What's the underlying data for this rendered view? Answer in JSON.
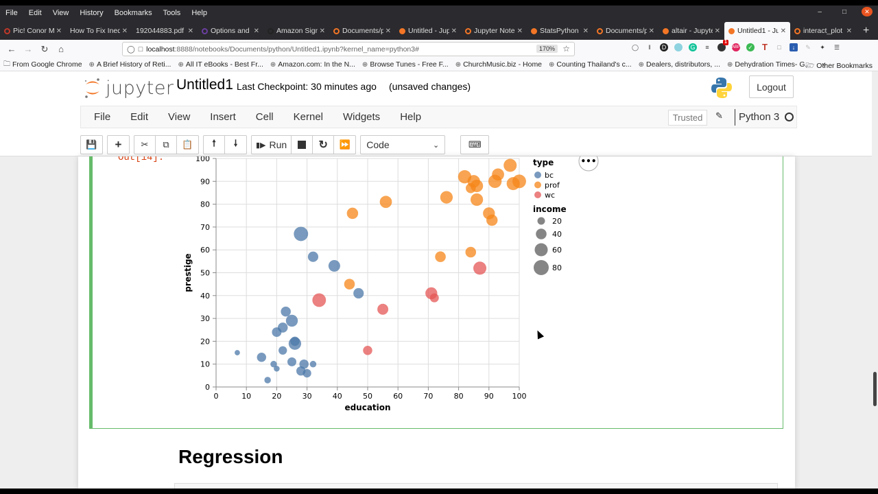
{
  "os_menu": [
    "File",
    "Edit",
    "View",
    "History",
    "Bookmarks",
    "Tools",
    "Help"
  ],
  "browser": {
    "tabs": [
      {
        "label": "Pic! Conor Mc",
        "icon": "#c0392b"
      },
      {
        "label": "How To Fix Ineq",
        "icon": null
      },
      {
        "label": "192044883.pdf",
        "icon": null
      },
      {
        "label": "Options and s",
        "icon": "#6a3fa0"
      },
      {
        "label": "Amazon Sign",
        "icon": "#222"
      },
      {
        "label": "Documents/p",
        "icon": "#f37626"
      },
      {
        "label": "Untitled - Jup",
        "icon": "#f37626"
      },
      {
        "label": "Jupyter Note",
        "icon": "#f37626"
      },
      {
        "label": "StatsPython",
        "icon": "#f37626"
      },
      {
        "label": "Documents/p",
        "icon": "#f37626"
      },
      {
        "label": "altair - Jupyte",
        "icon": "#f37626"
      },
      {
        "label": "Untitled1 - Ju",
        "icon": "#f37626",
        "active": true
      },
      {
        "label": "interact_plot",
        "icon": "#f37626"
      }
    ],
    "new_tab": "+",
    "url_host": "localhost",
    "url_rest": ":8888/notebooks/Documents/python/Untitled1.ipynb?kernel_name=python3#",
    "zoom": "170%",
    "bookmarks": [
      "From Google Chrome",
      "A Brief History of Reti...",
      "All IT eBooks - Best Fr...",
      "Amazon.com: In the N...",
      "Browse Tunes - Free F...",
      "ChurchMusic.biz - Home",
      "Counting Thailand's c...",
      "Dealers, distributors, ...",
      "Dehydration Times- G..."
    ],
    "bookmarks_overflow": "»",
    "other_bookmarks": "Other Bookmarks",
    "extension_badge": "1"
  },
  "jupyter": {
    "logo_text": "jupyter",
    "notebook_name": "Untitled1",
    "checkpoint": "Last Checkpoint: 30 minutes ago",
    "unsaved": "(unsaved changes)",
    "logout": "Logout",
    "menu": [
      "File",
      "Edit",
      "View",
      "Insert",
      "Cell",
      "Kernel",
      "Widgets",
      "Help"
    ],
    "trusted": "Trusted",
    "kernel": "Python 3",
    "run_label": "Run",
    "cell_type": "Code",
    "out_prompt": "Out[14]:",
    "markdown_heading": "Regression"
  },
  "chart_data": {
    "type": "scatter",
    "title": "",
    "xlabel": "education",
    "ylabel": "prestige",
    "xlim": [
      0,
      100
    ],
    "ylim": [
      0,
      100
    ],
    "x_ticks": [
      0,
      10,
      20,
      30,
      40,
      50,
      60,
      70,
      80,
      90,
      100
    ],
    "y_ticks": [
      0,
      10,
      20,
      30,
      40,
      50,
      60,
      70,
      80,
      90,
      100
    ],
    "grid": true,
    "legend_position": "right",
    "color_legend": {
      "title": "type",
      "entries": [
        {
          "label": "bc",
          "color": "#4c78a8"
        },
        {
          "label": "prof",
          "color": "#f58518"
        },
        {
          "label": "wc",
          "color": "#e45756"
        }
      ]
    },
    "size_legend": {
      "title": "income",
      "entries": [
        20,
        40,
        60,
        80
      ]
    },
    "points": [
      {
        "type": "bc",
        "education": 7,
        "prestige": 15,
        "income": 10
      },
      {
        "type": "bc",
        "education": 15,
        "prestige": 13,
        "income": 30
      },
      {
        "type": "bc",
        "education": 17,
        "prestige": 3,
        "income": 15
      },
      {
        "type": "bc",
        "education": 19,
        "prestige": 10,
        "income": 15
      },
      {
        "type": "bc",
        "education": 20,
        "prestige": 8,
        "income": 12
      },
      {
        "type": "bc",
        "education": 20,
        "prestige": 24,
        "income": 32
      },
      {
        "type": "bc",
        "education": 22,
        "prestige": 16,
        "income": 25
      },
      {
        "type": "bc",
        "education": 22,
        "prestige": 26,
        "income": 35
      },
      {
        "type": "bc",
        "education": 23,
        "prestige": 33,
        "income": 35
      },
      {
        "type": "bc",
        "education": 25,
        "prestige": 11,
        "income": 28
      },
      {
        "type": "bc",
        "education": 25,
        "prestige": 29,
        "income": 50
      },
      {
        "type": "bc",
        "education": 26,
        "prestige": 19,
        "income": 55
      },
      {
        "type": "bc",
        "education": 26,
        "prestige": 20,
        "income": 30
      },
      {
        "type": "bc",
        "education": 28,
        "prestige": 7,
        "income": 30
      },
      {
        "type": "bc",
        "education": 28,
        "prestige": 67,
        "income": 72
      },
      {
        "type": "bc",
        "education": 29,
        "prestige": 10,
        "income": 30
      },
      {
        "type": "bc",
        "education": 30,
        "prestige": 6,
        "income": 25
      },
      {
        "type": "bc",
        "education": 32,
        "prestige": 10,
        "income": 15
      },
      {
        "type": "bc",
        "education": 32,
        "prestige": 57,
        "income": 38
      },
      {
        "type": "bc",
        "education": 39,
        "prestige": 53,
        "income": 48
      },
      {
        "type": "bc",
        "education": 47,
        "prestige": 41,
        "income": 38
      },
      {
        "type": "prof",
        "education": 44,
        "prestige": 45,
        "income": 40
      },
      {
        "type": "prof",
        "education": 45,
        "prestige": 76,
        "income": 45
      },
      {
        "type": "prof",
        "education": 56,
        "prestige": 81,
        "income": 52
      },
      {
        "type": "prof",
        "education": 74,
        "prestige": 57,
        "income": 40
      },
      {
        "type": "prof",
        "education": 76,
        "prestige": 83,
        "income": 55
      },
      {
        "type": "prof",
        "education": 82,
        "prestige": 92,
        "income": 62
      },
      {
        "type": "prof",
        "education": 84,
        "prestige": 87,
        "income": 35
      },
      {
        "type": "prof",
        "education": 84,
        "prestige": 59,
        "income": 40
      },
      {
        "type": "prof",
        "education": 85,
        "prestige": 90,
        "income": 55
      },
      {
        "type": "prof",
        "education": 86,
        "prestige": 88,
        "income": 55
      },
      {
        "type": "prof",
        "education": 86,
        "prestige": 82,
        "income": 55
      },
      {
        "type": "prof",
        "education": 90,
        "prestige": 76,
        "income": 50
      },
      {
        "type": "prof",
        "education": 91,
        "prestige": 73,
        "income": 45
      },
      {
        "type": "prof",
        "education": 92,
        "prestige": 90,
        "income": 62
      },
      {
        "type": "prof",
        "education": 93,
        "prestige": 93,
        "income": 52
      },
      {
        "type": "prof",
        "education": 97,
        "prestige": 97,
        "income": 60
      },
      {
        "type": "prof",
        "education": 98,
        "prestige": 89,
        "income": 60
      },
      {
        "type": "prof",
        "education": 100,
        "prestige": 90,
        "income": 65
      },
      {
        "type": "wc",
        "education": 34,
        "prestige": 38,
        "income": 65
      },
      {
        "type": "wc",
        "education": 50,
        "prestige": 16,
        "income": 30
      },
      {
        "type": "wc",
        "education": 55,
        "prestige": 34,
        "income": 42
      },
      {
        "type": "wc",
        "education": 71,
        "prestige": 41,
        "income": 50
      },
      {
        "type": "wc",
        "education": 72,
        "prestige": 39,
        "income": 28
      },
      {
        "type": "wc",
        "education": 87,
        "prestige": 52,
        "income": 60
      }
    ]
  }
}
